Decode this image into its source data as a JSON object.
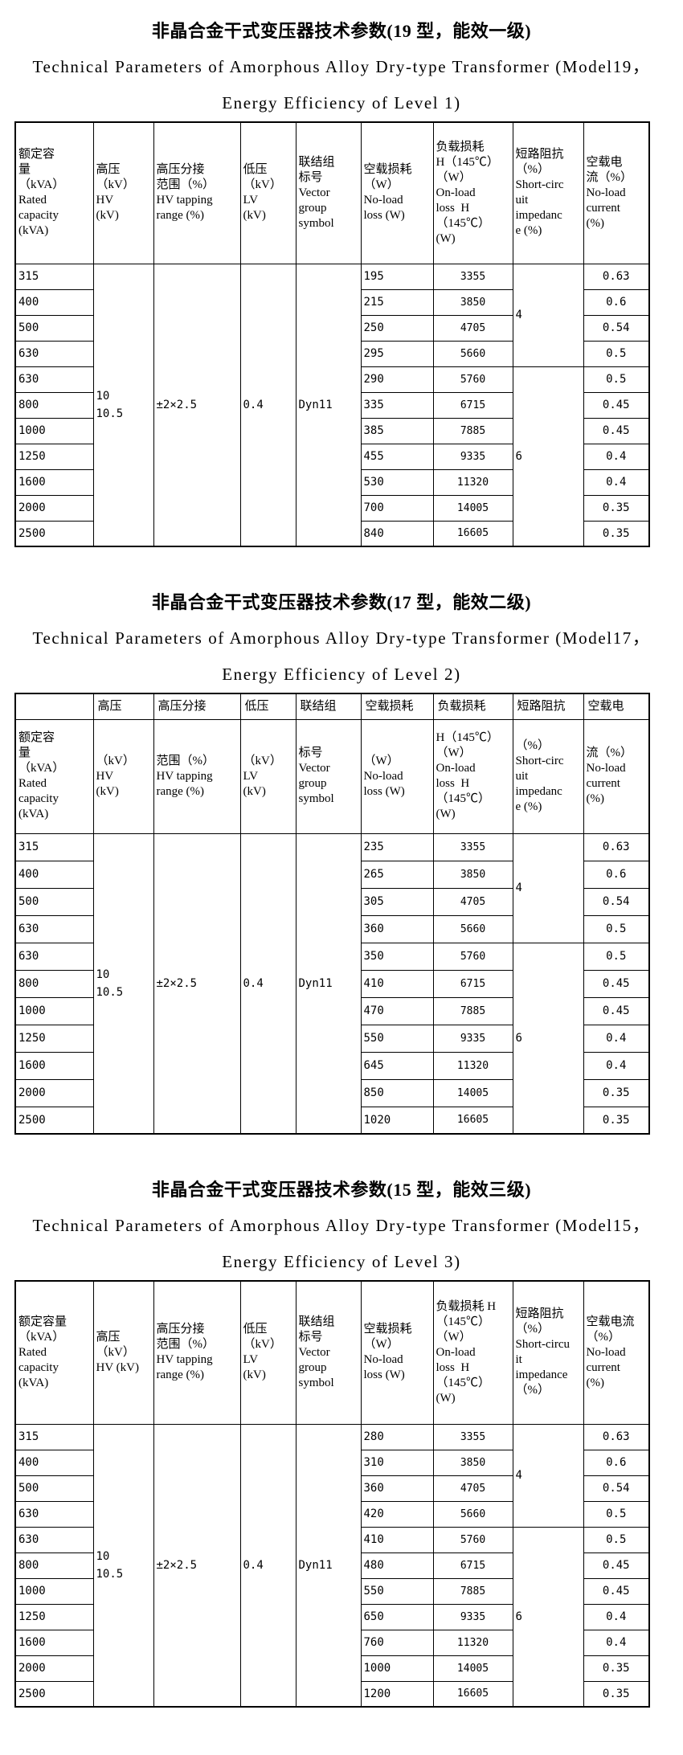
{
  "sections": [
    {
      "title_zh": "非晶合金干式变压器技术参数(19 型，能效一级)",
      "title_en1": "Technical Parameters of Amorphous Alloy Dry-type Transformer (Model19，",
      "title_en2": "Energy Efficiency of Level 1)",
      "narrow_row": null,
      "header_cells": [
        [
          "额定容",
          "量",
          "（kVA）",
          "Rated",
          "capacity",
          "(kVA)"
        ],
        [
          "高压",
          "（kV）",
          "HV",
          "(kV)"
        ],
        [
          "高压分接",
          "范围（%）",
          "HV tapping",
          "range (%)"
        ],
        [
          "低压",
          "（kV）",
          "LV",
          "(kV)"
        ],
        [
          "联结组",
          "标号",
          "Vector",
          "group",
          "symbol"
        ],
        [
          "空载损耗",
          "（W）",
          "No-load",
          "loss (W)"
        ],
        [
          "负载损耗",
          "H（145℃）",
          "（W）",
          "On-load",
          "loss  H",
          "（145℃）",
          "(W)"
        ],
        [
          "短路阻抗",
          "（%）",
          "Short-circ",
          "uit",
          "impedanc",
          "e (%)"
        ],
        [
          "空载电",
          "流（%）",
          "No-load",
          "current",
          "(%)"
        ]
      ],
      "merged": {
        "hv": [
          "10",
          "10.5"
        ],
        "tapping": "±2×2.5",
        "lv": "0.4",
        "vector": "Dyn11",
        "sc_groups": [
          {
            "rows": 4,
            "value": "4"
          },
          {
            "rows": 7,
            "value": "6"
          }
        ]
      },
      "rows": [
        {
          "capacity": "315",
          "no_load": "195",
          "on_load": "3355",
          "current": "0.63"
        },
        {
          "capacity": "400",
          "no_load": "215",
          "on_load": "3850",
          "current": "0.6"
        },
        {
          "capacity": "500",
          "no_load": "250",
          "on_load": "4705",
          "current": "0.54"
        },
        {
          "capacity": "630",
          "no_load": "295",
          "on_load": "5660",
          "current": "0.5"
        },
        {
          "capacity": "630",
          "no_load": "290",
          "on_load": "5760",
          "current": "0.5"
        },
        {
          "capacity": "800",
          "no_load": "335",
          "on_load": "6715",
          "current": "0.45"
        },
        {
          "capacity": "1000",
          "no_load": "385",
          "on_load": "7885",
          "current": "0.45"
        },
        {
          "capacity": "1250",
          "no_load": "455",
          "on_load": "9335",
          "current": "0.4"
        },
        {
          "capacity": "1600",
          "no_load": "530",
          "on_load": "11320",
          "current": "0.4"
        },
        {
          "capacity": "2000",
          "no_load": "700",
          "on_load": "14005",
          "current": "0.35"
        },
        {
          "capacity": "2500",
          "no_load": "840",
          "on_load": "16605",
          "current": "0.35"
        }
      ]
    },
    {
      "title_zh": "非晶合金干式变压器技术参数(17 型，能效二级)",
      "title_en1": "Technical Parameters of Amorphous Alloy Dry-type Transformer (Model17，",
      "title_en2": "Energy Efficiency of Level 2)",
      "narrow_row": [
        "",
        "高压",
        "高压分接",
        "低压",
        "联结组",
        "空载损耗",
        "负载损耗",
        "短路阻抗",
        "空载电"
      ],
      "header_cells": [
        [
          "额定容",
          "量",
          "（kVA）",
          "Rated",
          "capacity",
          "(kVA)"
        ],
        [
          "（kV）",
          "HV",
          "(kV)"
        ],
        [
          "范围（%）",
          "HV tapping",
          "range (%)"
        ],
        [
          "（kV）",
          "LV",
          "(kV)"
        ],
        [
          "标号",
          "Vector",
          "group",
          "symbol"
        ],
        [
          "（W）",
          "No-load",
          "loss (W)"
        ],
        [
          "H（145℃）",
          "（W）",
          "On-load",
          "loss  H",
          "（145℃）",
          "(W)"
        ],
        [
          "（%）",
          "Short-circ",
          "uit",
          "impedanc",
          "e (%)"
        ],
        [
          "流（%）",
          "No-load",
          "current",
          "(%)"
        ]
      ],
      "merged": {
        "hv": [
          "10",
          "10.5"
        ],
        "tapping": "±2×2.5",
        "lv": "0.4",
        "vector": "Dyn11",
        "sc_groups": [
          {
            "rows": 4,
            "value": "4"
          },
          {
            "rows": 7,
            "value": "6"
          }
        ]
      },
      "rows": [
        {
          "capacity": "315",
          "no_load": "235",
          "on_load": "3355",
          "current": "0.63"
        },
        {
          "capacity": "400",
          "no_load": "265",
          "on_load": "3850",
          "current": "0.6"
        },
        {
          "capacity": "500",
          "no_load": "305",
          "on_load": "4705",
          "current": "0.54"
        },
        {
          "capacity": "630",
          "no_load": "360",
          "on_load": "5660",
          "current": "0.5"
        },
        {
          "capacity": "630",
          "no_load": "350",
          "on_load": "5760",
          "current": "0.5"
        },
        {
          "capacity": "800",
          "no_load": "410",
          "on_load": "6715",
          "current": "0.45"
        },
        {
          "capacity": "1000",
          "no_load": "470",
          "on_load": "7885",
          "current": "0.45"
        },
        {
          "capacity": "1250",
          "no_load": "550",
          "on_load": "9335",
          "current": "0.4"
        },
        {
          "capacity": "1600",
          "no_load": "645",
          "on_load": "11320",
          "current": "0.4"
        },
        {
          "capacity": "2000",
          "no_load": "850",
          "on_load": "14005",
          "current": "0.35"
        },
        {
          "capacity": "2500",
          "no_load": "1020",
          "on_load": "16605",
          "current": "0.35"
        }
      ]
    },
    {
      "title_zh": "非晶合金干式变压器技术参数(15 型，能效三级)",
      "title_en1": "Technical Parameters of Amorphous Alloy Dry-type Transformer (Model15，",
      "title_en2": "Energy Efficiency of Level 3)",
      "narrow_row": null,
      "header_cells": [
        [
          "额定容量",
          "（kVA）",
          "Rated",
          "capacity",
          "(kVA)"
        ],
        [
          "高压",
          "（kV）",
          "HV (kV)"
        ],
        [
          "高压分接",
          "范围（%）",
          "HV tapping",
          "range (%)"
        ],
        [
          "低压",
          "（kV）",
          "LV",
          "(kV)"
        ],
        [
          "联结组",
          "标号",
          "Vector",
          "group",
          "symbol"
        ],
        [
          "空载损耗",
          "（W）",
          "No-load",
          "loss (W)"
        ],
        [
          "负载损耗 H",
          "（145℃）",
          "（W）",
          "On-load",
          "loss  H",
          "（145℃）",
          "(W)"
        ],
        [
          "短路阻抗",
          "（%）",
          "Short-circu",
          "it",
          "impedance",
          "（%）"
        ],
        [
          "空载电流",
          "（%）",
          "No-load",
          "current",
          "(%)"
        ]
      ],
      "merged": {
        "hv": [
          "10",
          "10.5"
        ],
        "tapping": "±2×2.5",
        "lv": "0.4",
        "vector": "Dyn11",
        "sc_groups": [
          {
            "rows": 4,
            "value": "4"
          },
          {
            "rows": 7,
            "value": "6"
          }
        ]
      },
      "rows": [
        {
          "capacity": "315",
          "no_load": "280",
          "on_load": "3355",
          "current": "0.63"
        },
        {
          "capacity": "400",
          "no_load": "310",
          "on_load": "3850",
          "current": "0.6"
        },
        {
          "capacity": "500",
          "no_load": "360",
          "on_load": "4705",
          "current": "0.54"
        },
        {
          "capacity": "630",
          "no_load": "420",
          "on_load": "5660",
          "current": "0.5"
        },
        {
          "capacity": "630",
          "no_load": "410",
          "on_load": "5760",
          "current": "0.5"
        },
        {
          "capacity": "800",
          "no_load": "480",
          "on_load": "6715",
          "current": "0.45"
        },
        {
          "capacity": "1000",
          "no_load": "550",
          "on_load": "7885",
          "current": "0.45"
        },
        {
          "capacity": "1250",
          "no_load": "650",
          "on_load": "9335",
          "current": "0.4"
        },
        {
          "capacity": "1600",
          "no_load": "760",
          "on_load": "11320",
          "current": "0.4"
        },
        {
          "capacity": "2000",
          "no_load": "1000",
          "on_load": "14005",
          "current": "0.35"
        },
        {
          "capacity": "2500",
          "no_load": "1200",
          "on_load": "16605",
          "current": "0.35"
        }
      ]
    }
  ],
  "column_semantics": [
    "rated-capacity",
    "hv",
    "hv-tapping-range",
    "lv",
    "vector-group-symbol",
    "no-load-loss",
    "on-load-loss",
    "short-circuit-impedance",
    "no-load-current"
  ]
}
